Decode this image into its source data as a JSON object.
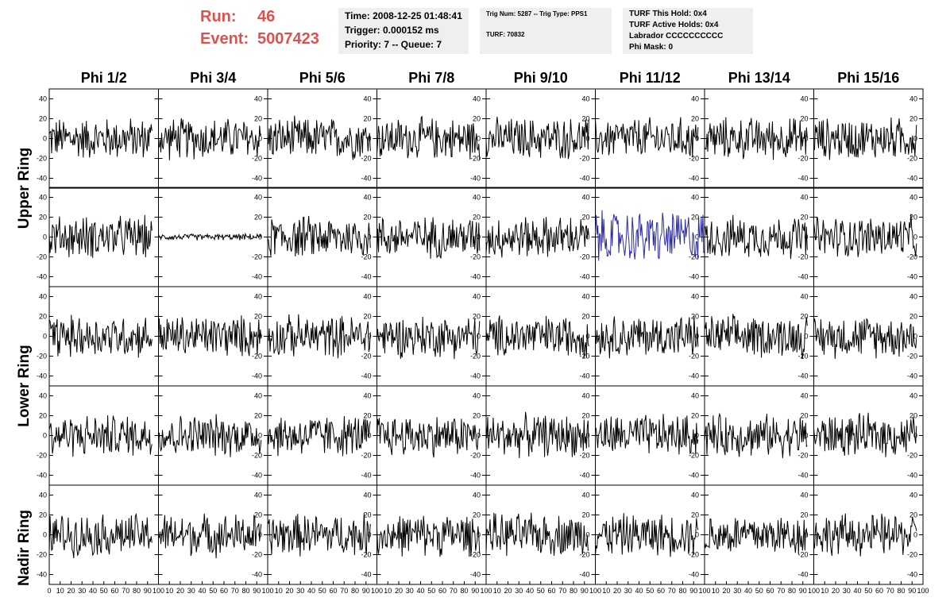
{
  "header": {
    "run_label": "Run:",
    "run_value": "46",
    "event_label": "Event:",
    "event_value": "5007423",
    "time": "Time: 2008-12-25 01:48:41",
    "trigger": "Trigger: 0.000152 ms",
    "priority": "Priority: 7 -- Queue: 7",
    "trig_info": "Trig Num: 5287 -- Trig Type: PPS1",
    "turf": "TURF: 70832",
    "turf_this_hold": "TURF This Hold: 0x4",
    "turf_active_holds": "TURF Active Holds: 0x4",
    "labrador": "Labrador CCCCCCCCCC",
    "phi_mask": "Phi Mask: 0"
  },
  "colors": {
    "run_text": "#d9534f",
    "trace": "#000000",
    "highlight_trace": "#2b2b9e",
    "info_bg": "#efefef"
  },
  "chart_data": {
    "type": "line",
    "columns": [
      "Phi 1/2",
      "Phi 3/4",
      "Phi 5/6",
      "Phi 7/8",
      "Phi 9/10",
      "Phi 11/12",
      "Phi 13/14",
      "Phi 15/16"
    ],
    "row_labels": [
      "Upper Ring",
      "Lower Ring",
      "Nadir Ring"
    ],
    "rows": 5,
    "xlim": [
      0,
      100
    ],
    "ylim": [
      -50,
      50
    ],
    "x_ticks": [
      "0",
      "10",
      "20",
      "30",
      "40",
      "50",
      "60",
      "70",
      "80",
      "90",
      "100"
    ],
    "y_ticks": [
      40,
      20,
      0,
      -20,
      -40
    ],
    "typical_amplitude": 20,
    "quiet_channel": {
      "row": 1,
      "column": 1,
      "amplitude": 3
    },
    "highlighted_channel": {
      "row": 1,
      "column": 5,
      "amplitude": 25
    }
  }
}
